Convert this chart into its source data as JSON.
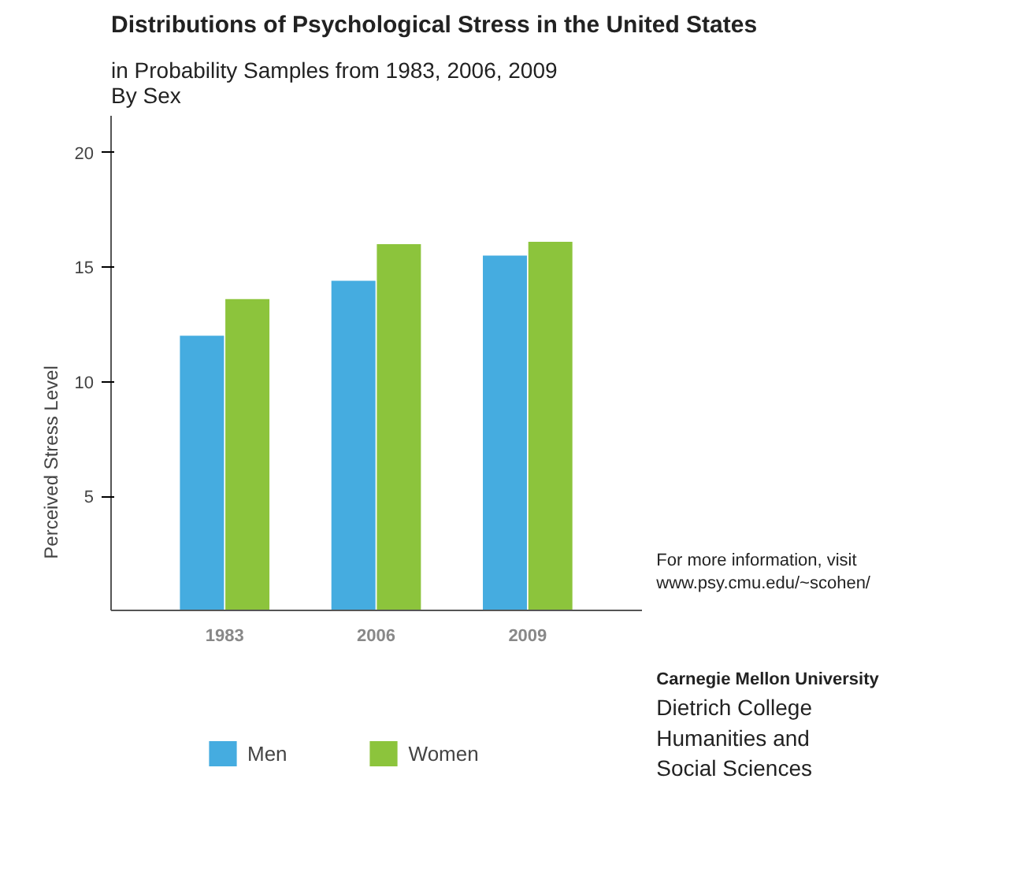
{
  "chart_data": {
    "type": "bar",
    "title": "Distributions of Psychological Stress in the United States",
    "subtitle": "in Probability Samples from 1983, 2006, 2009\nBy Sex",
    "ylabel": "Perceived Stress Level",
    "categories": [
      "1983",
      "2006",
      "2009"
    ],
    "series": [
      {
        "name": "Men",
        "color": "#45ace0",
        "values": [
          12.0,
          14.4,
          15.5
        ]
      },
      {
        "name": "Women",
        "color": "#8cc43c",
        "values": [
          13.6,
          16.0,
          16.1
        ]
      }
    ],
    "ylim": [
      0,
      21.6
    ],
    "yticks": [
      5,
      10,
      15,
      20
    ],
    "grid": false,
    "legend": "bottom",
    "annotations": [
      "For more information, visit\nwww.psy.cmu.edu/~scohen/",
      "Carnegie Mellon University",
      "Dietrich College\nHumanities and\nSocial Sciences"
    ]
  }
}
